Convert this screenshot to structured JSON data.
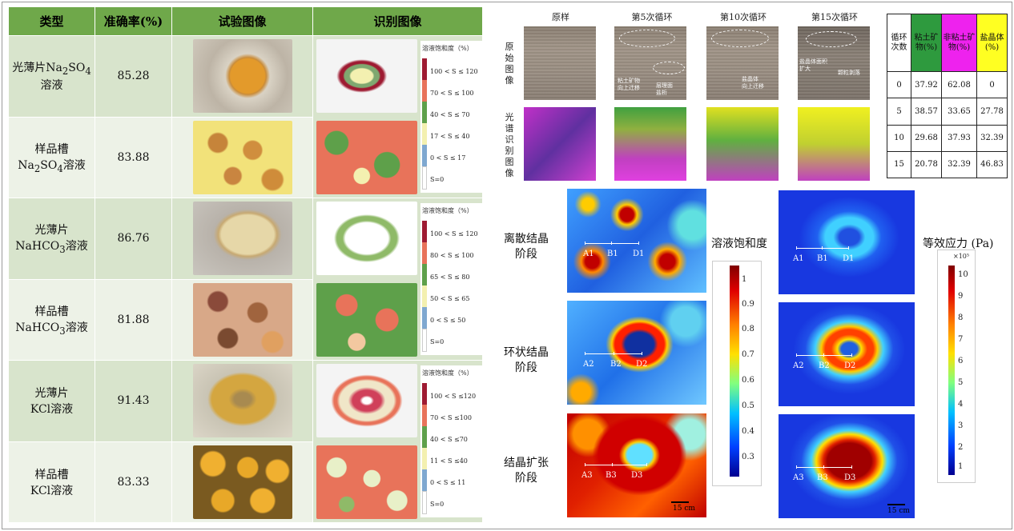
{
  "left_table": {
    "headers": [
      "类型",
      "准确率(%)",
      "试验图像",
      "识别图像"
    ],
    "rows": [
      {
        "type_line1": "光薄片Na",
        "type_sub1": "2",
        "type_mid": "SO",
        "type_sub2": "4",
        "type_line2": "溶液",
        "accuracy": "85.28"
      },
      {
        "type_line1": "样品槽",
        "type_pre": "Na",
        "type_sub1": "2",
        "type_mid": "SO",
        "type_sub2": "4",
        "type_line2": "溶液",
        "accuracy": "83.88"
      },
      {
        "type_line1": "光薄片",
        "type_pre": "NaHCO",
        "type_sub1": "3",
        "type_line2": "溶液",
        "accuracy": "86.76"
      },
      {
        "type_line1": "样品槽",
        "type_pre": "NaHCO",
        "type_sub1": "3",
        "type_line2": "溶液",
        "accuracy": "81.88"
      },
      {
        "type_line1": "光薄片",
        "type_line2": "KCl溶液",
        "accuracy": "91.43"
      },
      {
        "type_line1": "样品槽",
        "type_line2": "KCl溶液",
        "accuracy": "83.33"
      }
    ],
    "legends": [
      {
        "title": "溶液饱和度（%）",
        "labels": [
          "100 < S ≤ 120",
          "70 < S ≤ 100",
          "40 < S ≤ 70",
          "17 < S ≤ 40",
          "0 < S ≤ 17",
          "S=0"
        ]
      },
      {
        "title": "溶液饱和度（%）",
        "labels": [
          "100 < S ≤ 120",
          "80 < S ≤ 100",
          "65 < S ≤ 80",
          "50 < S ≤ 65",
          "0 < S ≤ 50",
          "S=0"
        ]
      },
      {
        "title": "溶液饱和度（%）",
        "labels": [
          "100 < S ≤120",
          "70 < S ≤100",
          "40 < S ≤70",
          "11 < S ≤40",
          "0 < S ≤ 11",
          "S=0"
        ]
      }
    ],
    "legend_colors": [
      "#9e1b32",
      "#e8735a",
      "#5ea04a",
      "#f3f0b0",
      "#7fa8d0",
      "#ffffff"
    ]
  },
  "cycle_panel": {
    "col_heads": [
      "原样",
      "第5次循环",
      "第10次循环",
      "第15次循环"
    ],
    "row_label_1": [
      "原",
      "始",
      "图",
      "像"
    ],
    "row_label_2": [
      "光",
      "谱",
      "识",
      "别",
      "图",
      "像"
    ],
    "annotations": {
      "clay": "粘土矿物\n向上迁移",
      "bedding": "层理面\n盐析",
      "salt_up": "盐晶体\n向上迁移",
      "salt_expand": "盐晶体面积\n扩大",
      "peel": "颗粒剥落"
    }
  },
  "cycle_table": {
    "head": [
      "循环次数",
      "粘土矿物(%)",
      "非粘土矿物(%)",
      "盐晶体(%)"
    ],
    "head_colors": [
      "#ffffff",
      "#2e9a3e",
      "#ee22ee",
      "#ffff22"
    ],
    "rows": [
      [
        "0",
        "37.92",
        "62.08",
        "0"
      ],
      [
        "5",
        "38.57",
        "33.65",
        "27.78"
      ],
      [
        "10",
        "29.68",
        "37.93",
        "32.39"
      ],
      [
        "15",
        "20.78",
        "32.39",
        "46.83"
      ]
    ]
  },
  "stages": [
    {
      "name_l1": "离散结晶",
      "name_l2": "阶段",
      "labels": [
        "A1",
        "B1",
        "D1"
      ]
    },
    {
      "name_l1": "环状结晶",
      "name_l2": "阶段",
      "labels": [
        "A2",
        "B2",
        "D2"
      ]
    },
    {
      "name_l1": "结晶扩张",
      "name_l2": "阶段",
      "labels": [
        "A3",
        "B3",
        "D3"
      ]
    }
  ],
  "saturation_bar": {
    "title": "溶液饱和度",
    "ticks": [
      "1",
      "0.9",
      "0.8",
      "0.7",
      "0.6",
      "0.5",
      "0.4",
      "0.3"
    ]
  },
  "stress_bar": {
    "title": "等效应力 (Pa)",
    "multiplier": "×10⁵",
    "ticks": [
      "10",
      "9",
      "8",
      "7",
      "6",
      "5",
      "4",
      "3",
      "2",
      "1"
    ]
  },
  "scale_label": "15 cm"
}
